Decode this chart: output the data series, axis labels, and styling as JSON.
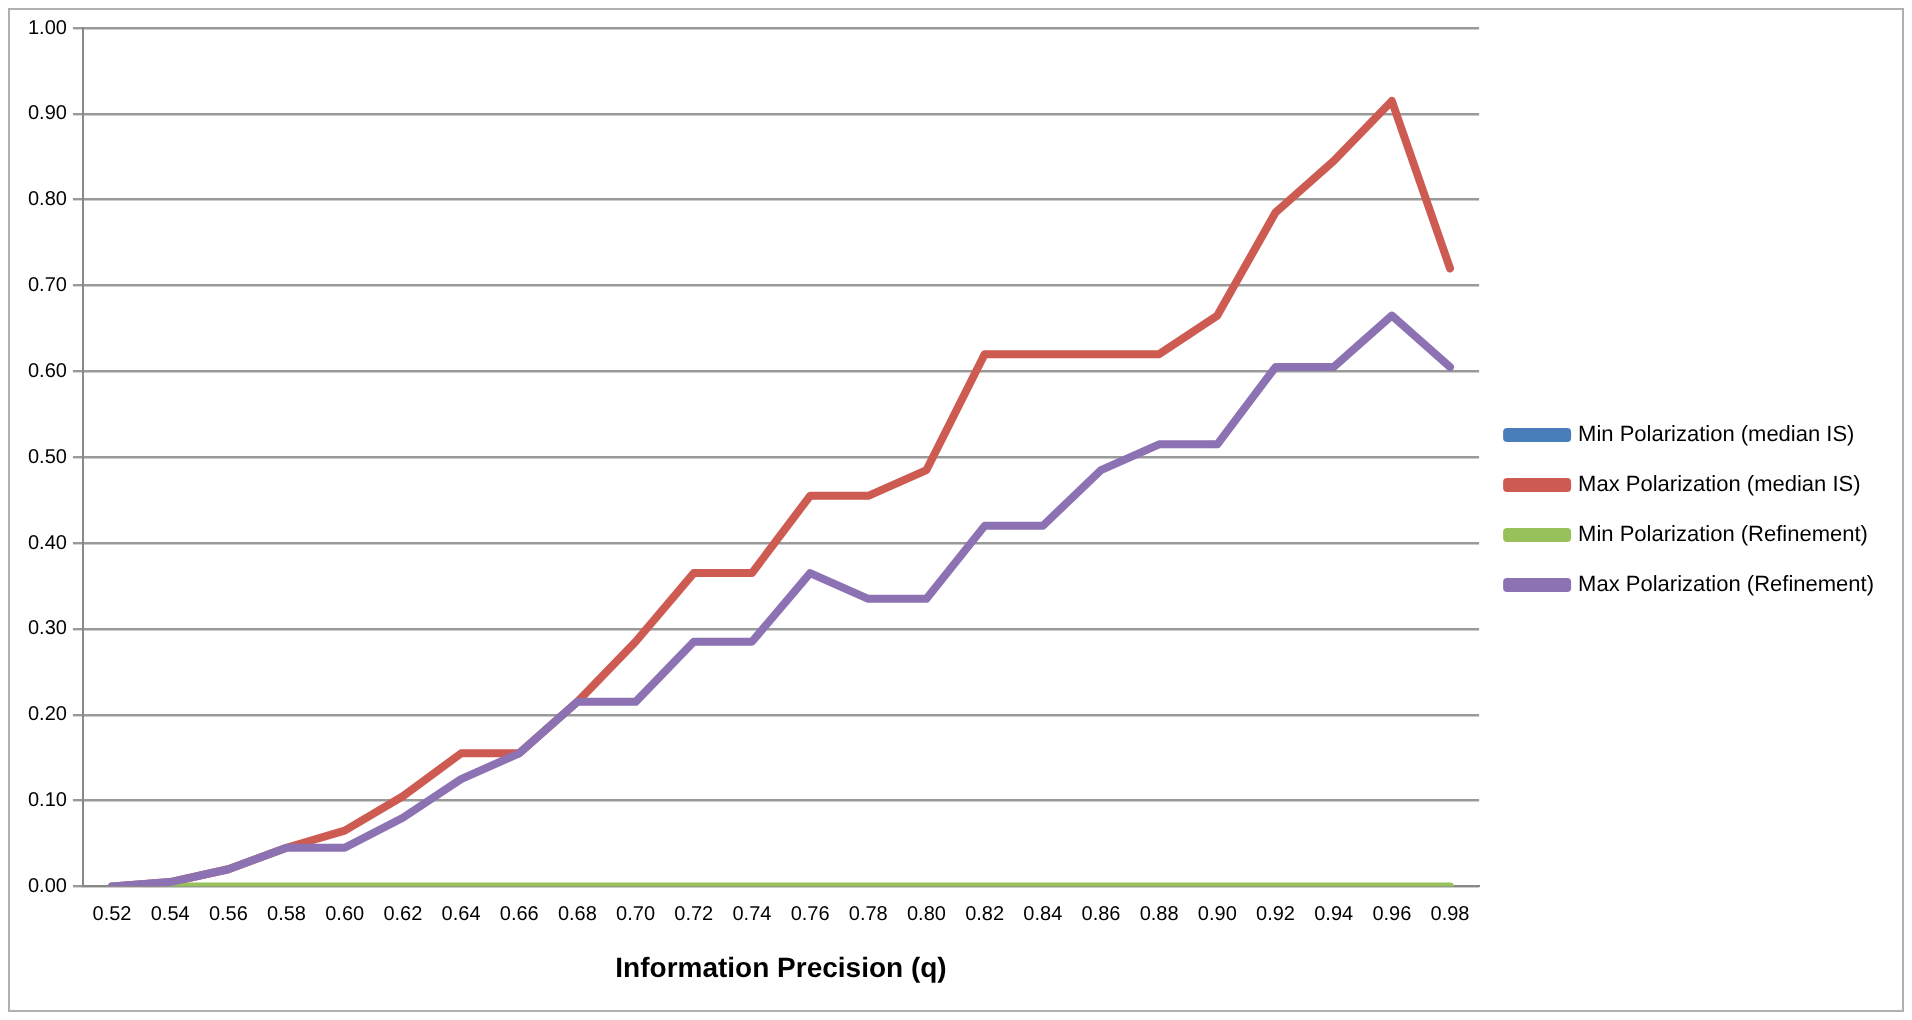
{
  "chart_data": {
    "type": "line",
    "xlabel": "Information Precision (q)",
    "categories": [
      "0.52",
      "0.54",
      "0.56",
      "0.58",
      "0.60",
      "0.62",
      "0.64",
      "0.66",
      "0.68",
      "0.70",
      "0.72",
      "0.74",
      "0.76",
      "0.78",
      "0.80",
      "0.82",
      "0.84",
      "0.86",
      "0.88",
      "0.90",
      "0.92",
      "0.94",
      "0.96",
      "0.98"
    ],
    "series": [
      {
        "name": "Min Polarization (median IS)",
        "color": "#4a7ebb",
        "values": [
          null,
          null,
          null,
          null,
          null,
          null,
          null,
          null,
          null,
          null,
          null,
          null,
          null,
          null,
          null,
          null,
          null,
          null,
          null,
          null,
          null,
          null,
          null,
          null
        ]
      },
      {
        "name": "Max Polarization (median IS)",
        "color": "#cd5b52",
        "values": [
          0,
          0.005,
          0.02,
          0.045,
          0.065,
          0.105,
          0.155,
          0.155,
          0.215,
          0.285,
          0.365,
          0.365,
          0.455,
          0.455,
          0.485,
          0.62,
          0.62,
          0.62,
          0.62,
          0.665,
          0.785,
          0.845,
          0.915,
          0.72
        ]
      },
      {
        "name": "Min Polarization (Refinement)",
        "color": "#98c05b",
        "values": [
          0,
          0,
          0,
          0,
          0,
          0,
          0,
          0,
          0,
          0,
          0,
          0,
          0,
          0,
          0,
          0,
          0,
          0,
          0,
          0,
          0,
          0,
          0,
          0
        ]
      },
      {
        "name": "Max Polarization (Refinement)",
        "color": "#8c72b3",
        "values": [
          0,
          0.005,
          0.02,
          0.045,
          0.045,
          0.08,
          0.125,
          0.155,
          0.215,
          0.215,
          0.285,
          0.285,
          0.365,
          0.335,
          0.335,
          0.42,
          0.42,
          0.485,
          0.515,
          0.515,
          0.605,
          0.605,
          0.665,
          0.605
        ]
      }
    ],
    "ylim": [
      0,
      1
    ],
    "yticks": [
      {
        "value": 0,
        "label": "0.00"
      },
      {
        "value": 0.1,
        "label": "0.10"
      },
      {
        "value": 0.2,
        "label": "0.20"
      },
      {
        "value": 0.3,
        "label": "0.30"
      },
      {
        "value": 0.4,
        "label": "0.40"
      },
      {
        "value": 0.5,
        "label": "0.50"
      },
      {
        "value": 0.6,
        "label": "0.60"
      },
      {
        "value": 0.7,
        "label": "0.70"
      },
      {
        "value": 0.8,
        "label": "0.80"
      },
      {
        "value": 0.9,
        "label": "0.90"
      },
      {
        "value": 1,
        "label": "1.00"
      }
    ],
    "grid": "y",
    "legend": "right",
    "marker": "none",
    "line_style": "solid"
  }
}
